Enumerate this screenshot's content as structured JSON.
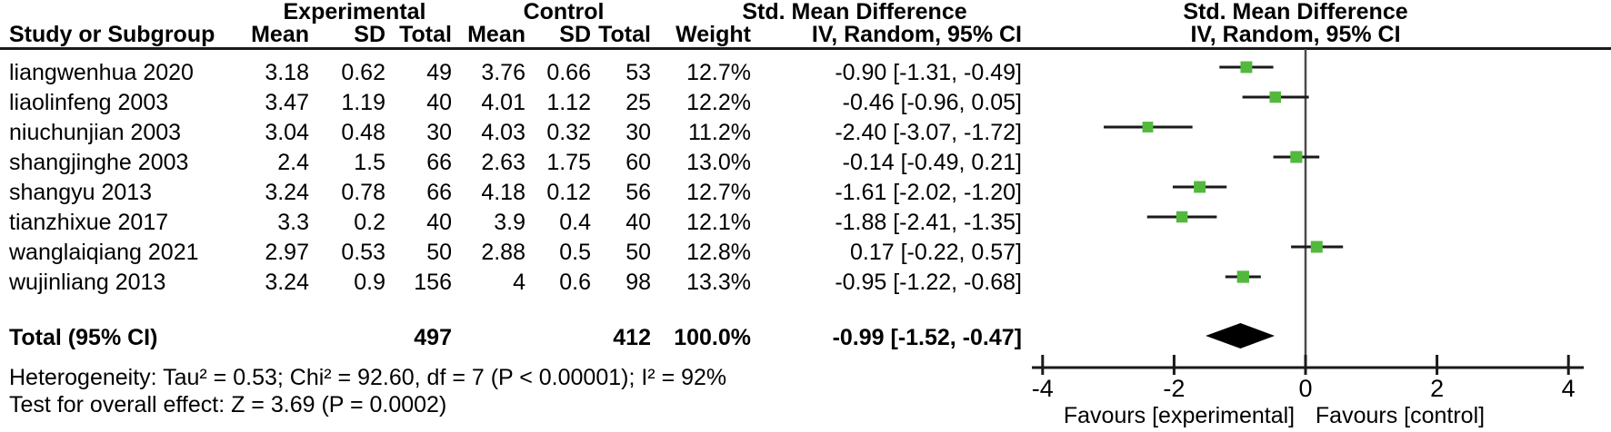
{
  "colors": {
    "marker_green": "#52B93C",
    "line_black": "#1A1A1A",
    "zero_line_gray": "#4A4A4A",
    "background": "#FFFFFF"
  },
  "headers": {
    "experimental": "Experimental",
    "control": "Control",
    "smd_left": "Std. Mean Difference",
    "smd_right": "Std. Mean Difference",
    "study": "Study or Subgroup",
    "mean": "Mean",
    "sd": "SD",
    "total": "Total",
    "weight": "Weight",
    "method_left": "IV, Random, 95% CI",
    "method_right": "IV, Random, 95% CI"
  },
  "total_row": {
    "label": "Total (95% CI)",
    "exp_total": "497",
    "ctl_total": "412",
    "weight": "100.0%",
    "ci_text": "-0.99 [-1.52, -0.47]"
  },
  "footer": {
    "heterogeneity": "Heterogeneity: Tau² = 0.53; Chi² = 92.60, df = 7 (P < 0.00001); I² = 92%",
    "overall_effect": "Test for overall effect: Z = 3.69 (P = 0.0002)"
  },
  "chart_data": {
    "type": "scatter",
    "subtype": "forest_plot",
    "title": "Std. Mean Difference",
    "effect_measure": "IV, Random, 95% CI",
    "x_axis": {
      "ticks": [
        -4,
        -2,
        0,
        2,
        4
      ],
      "range": [
        -4.15,
        4.25
      ],
      "zero_line": 0
    },
    "favours_left": "Favours [experimental]",
    "favours_right": "Favours [control]",
    "studies": [
      {
        "name": "liangwenhua 2020",
        "exp_mean": "3.18",
        "exp_sd": "0.62",
        "exp_total": "49",
        "ctl_mean": "3.76",
        "ctl_sd": "0.66",
        "ctl_total": "53",
        "weight": "12.7%",
        "smd": -0.9,
        "ci_low": -1.31,
        "ci_high": -0.49,
        "ci_text": "-0.90 [-1.31, -0.49]"
      },
      {
        "name": "liaolinfeng 2003",
        "exp_mean": "3.47",
        "exp_sd": "1.19",
        "exp_total": "40",
        "ctl_mean": "4.01",
        "ctl_sd": "1.12",
        "ctl_total": "25",
        "weight": "12.2%",
        "smd": -0.46,
        "ci_low": -0.96,
        "ci_high": 0.05,
        "ci_text": "-0.46 [-0.96, 0.05]"
      },
      {
        "name": "niuchunjian 2003",
        "exp_mean": "3.04",
        "exp_sd": "0.48",
        "exp_total": "30",
        "ctl_mean": "4.03",
        "ctl_sd": "0.32",
        "ctl_total": "30",
        "weight": "11.2%",
        "smd": -2.4,
        "ci_low": -3.07,
        "ci_high": -1.72,
        "ci_text": "-2.40 [-3.07, -1.72]"
      },
      {
        "name": "shangjinghe 2003",
        "exp_mean": "2.4",
        "exp_sd": "1.5",
        "exp_total": "66",
        "ctl_mean": "2.63",
        "ctl_sd": "1.75",
        "ctl_total": "60",
        "weight": "13.0%",
        "smd": -0.14,
        "ci_low": -0.49,
        "ci_high": 0.21,
        "ci_text": "-0.14 [-0.49, 0.21]"
      },
      {
        "name": "shangyu 2013",
        "exp_mean": "3.24",
        "exp_sd": "0.78",
        "exp_total": "66",
        "ctl_mean": "4.18",
        "ctl_sd": "0.12",
        "ctl_total": "56",
        "weight": "12.7%",
        "smd": -1.61,
        "ci_low": -2.02,
        "ci_high": -1.2,
        "ci_text": "-1.61 [-2.02, -1.20]"
      },
      {
        "name": "tianzhixue 2017",
        "exp_mean": "3.3",
        "exp_sd": "0.2",
        "exp_total": "40",
        "ctl_mean": "3.9",
        "ctl_sd": "0.4",
        "ctl_total": "40",
        "weight": "12.1%",
        "smd": -1.88,
        "ci_low": -2.41,
        "ci_high": -1.35,
        "ci_text": "-1.88 [-2.41, -1.35]"
      },
      {
        "name": "wanglaiqiang 2021",
        "exp_mean": "2.97",
        "exp_sd": "0.53",
        "exp_total": "50",
        "ctl_mean": "2.88",
        "ctl_sd": "0.5",
        "ctl_total": "50",
        "weight": "12.8%",
        "smd": 0.17,
        "ci_low": -0.22,
        "ci_high": 0.57,
        "ci_text": "0.17 [-0.22, 0.57]"
      },
      {
        "name": "wujinliang 2013",
        "exp_mean": "3.24",
        "exp_sd": "0.9",
        "exp_total": "156",
        "ctl_mean": "4",
        "ctl_sd": "0.6",
        "ctl_total": "98",
        "weight": "13.3%",
        "smd": -0.95,
        "ci_low": -1.22,
        "ci_high": -0.68,
        "ci_text": "-0.95 [-1.22, -0.68]"
      }
    ],
    "overall": {
      "smd": -0.99,
      "ci_low": -1.52,
      "ci_high": -0.47
    }
  }
}
